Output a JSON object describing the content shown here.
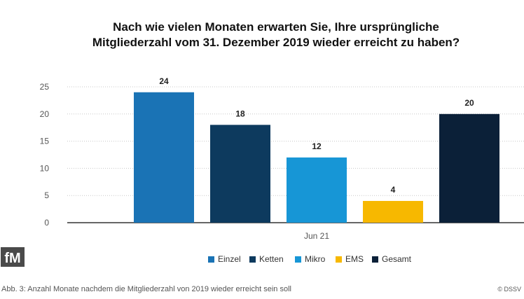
{
  "chart_data": {
    "type": "bar",
    "title_lines": [
      "Nach wie vielen Monaten erwarten Sie, Ihre ursprüngliche",
      "Mitgliederzahl vom 31. Dezember 2019 wieder erreicht zu haben?"
    ],
    "categories": [
      "Jun 21"
    ],
    "series": [
      {
        "name": "Einzel",
        "values": [
          24
        ],
        "color": "#1a73b5"
      },
      {
        "name": "Ketten",
        "values": [
          18
        ],
        "color": "#0d3a5e"
      },
      {
        "name": "Mikro",
        "values": [
          12
        ],
        "color": "#1796d6"
      },
      {
        "name": "EMS",
        "values": [
          4
        ],
        "color": "#f7b800"
      },
      {
        "name": "Gesamt",
        "values": [
          20
        ],
        "color": "#0b2038"
      }
    ],
    "yticks": [
      0,
      5,
      10,
      15,
      20,
      25
    ],
    "ylim": [
      0,
      25
    ],
    "grid": true,
    "legend_position": "bottom",
    "data_labels": true
  },
  "footer": {
    "caption": "Abb. 3: Anzahl Monate nachdem die Mitgliederzahl von 2019 wieder erreicht sein soll",
    "credit": "© DSSV",
    "logo_text": "fM"
  }
}
